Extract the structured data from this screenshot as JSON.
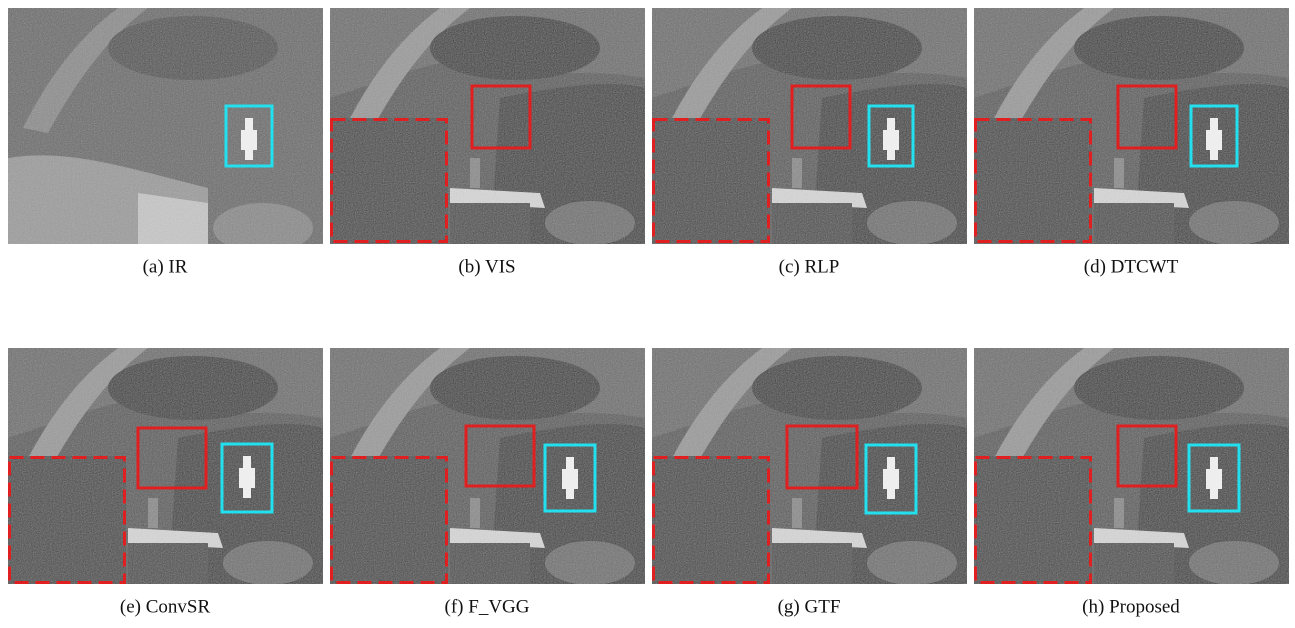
{
  "panels": [
    {
      "caption": "(a) IR"
    },
    {
      "caption": "(b) VIS"
    },
    {
      "caption": "(c) RLP"
    },
    {
      "caption": "(d) DTCWT"
    },
    {
      "caption": "(e) ConvSR"
    },
    {
      "caption": "(f) F_VGG"
    },
    {
      "caption": "(g) GTF"
    },
    {
      "caption": "(h) Proposed"
    }
  ]
}
